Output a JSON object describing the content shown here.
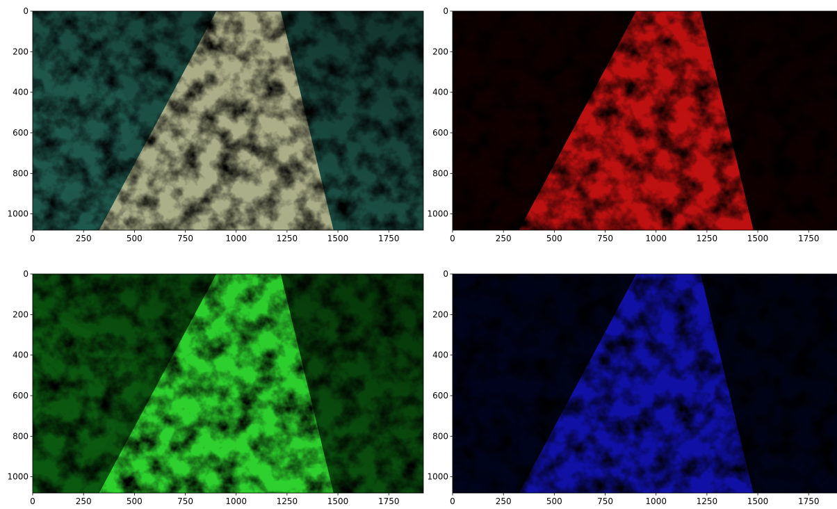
{
  "chart_data": [
    {
      "type": "image",
      "palette": [
        "#1f5a4e",
        "#cfc79a"
      ],
      "xlim": [
        0,
        1920
      ],
      "ylim": [
        1080,
        0
      ],
      "xticks": [
        0,
        250,
        500,
        750,
        1000,
        1250,
        1500,
        1750
      ],
      "yticks": [
        0,
        200,
        400,
        600,
        800,
        1000
      ]
    },
    {
      "type": "image",
      "palette": [
        "#120000",
        "#e81414"
      ],
      "xlim": [
        0,
        1920
      ],
      "ylim": [
        1080,
        0
      ],
      "xticks": [
        0,
        250,
        500,
        750,
        1000,
        1250,
        1500,
        1750
      ],
      "yticks": [
        0,
        200,
        400,
        600,
        800,
        1000
      ]
    },
    {
      "type": "image",
      "palette": [
        "#0b5a10",
        "#36f036"
      ],
      "xlim": [
        0,
        1920
      ],
      "ylim": [
        1080,
        0
      ],
      "xticks": [
        0,
        250,
        500,
        750,
        1000,
        1250,
        1500,
        1750
      ],
      "yticks": [
        0,
        200,
        400,
        600,
        800,
        1000
      ]
    },
    {
      "type": "image",
      "palette": [
        "#00041c",
        "#1414c8"
      ],
      "xlim": [
        0,
        1920
      ],
      "ylim": [
        1080,
        0
      ],
      "xticks": [
        0,
        250,
        500,
        750,
        1000,
        1250,
        1500,
        1750
      ],
      "yticks": [
        0,
        200,
        400,
        600,
        800,
        1000
      ]
    }
  ]
}
